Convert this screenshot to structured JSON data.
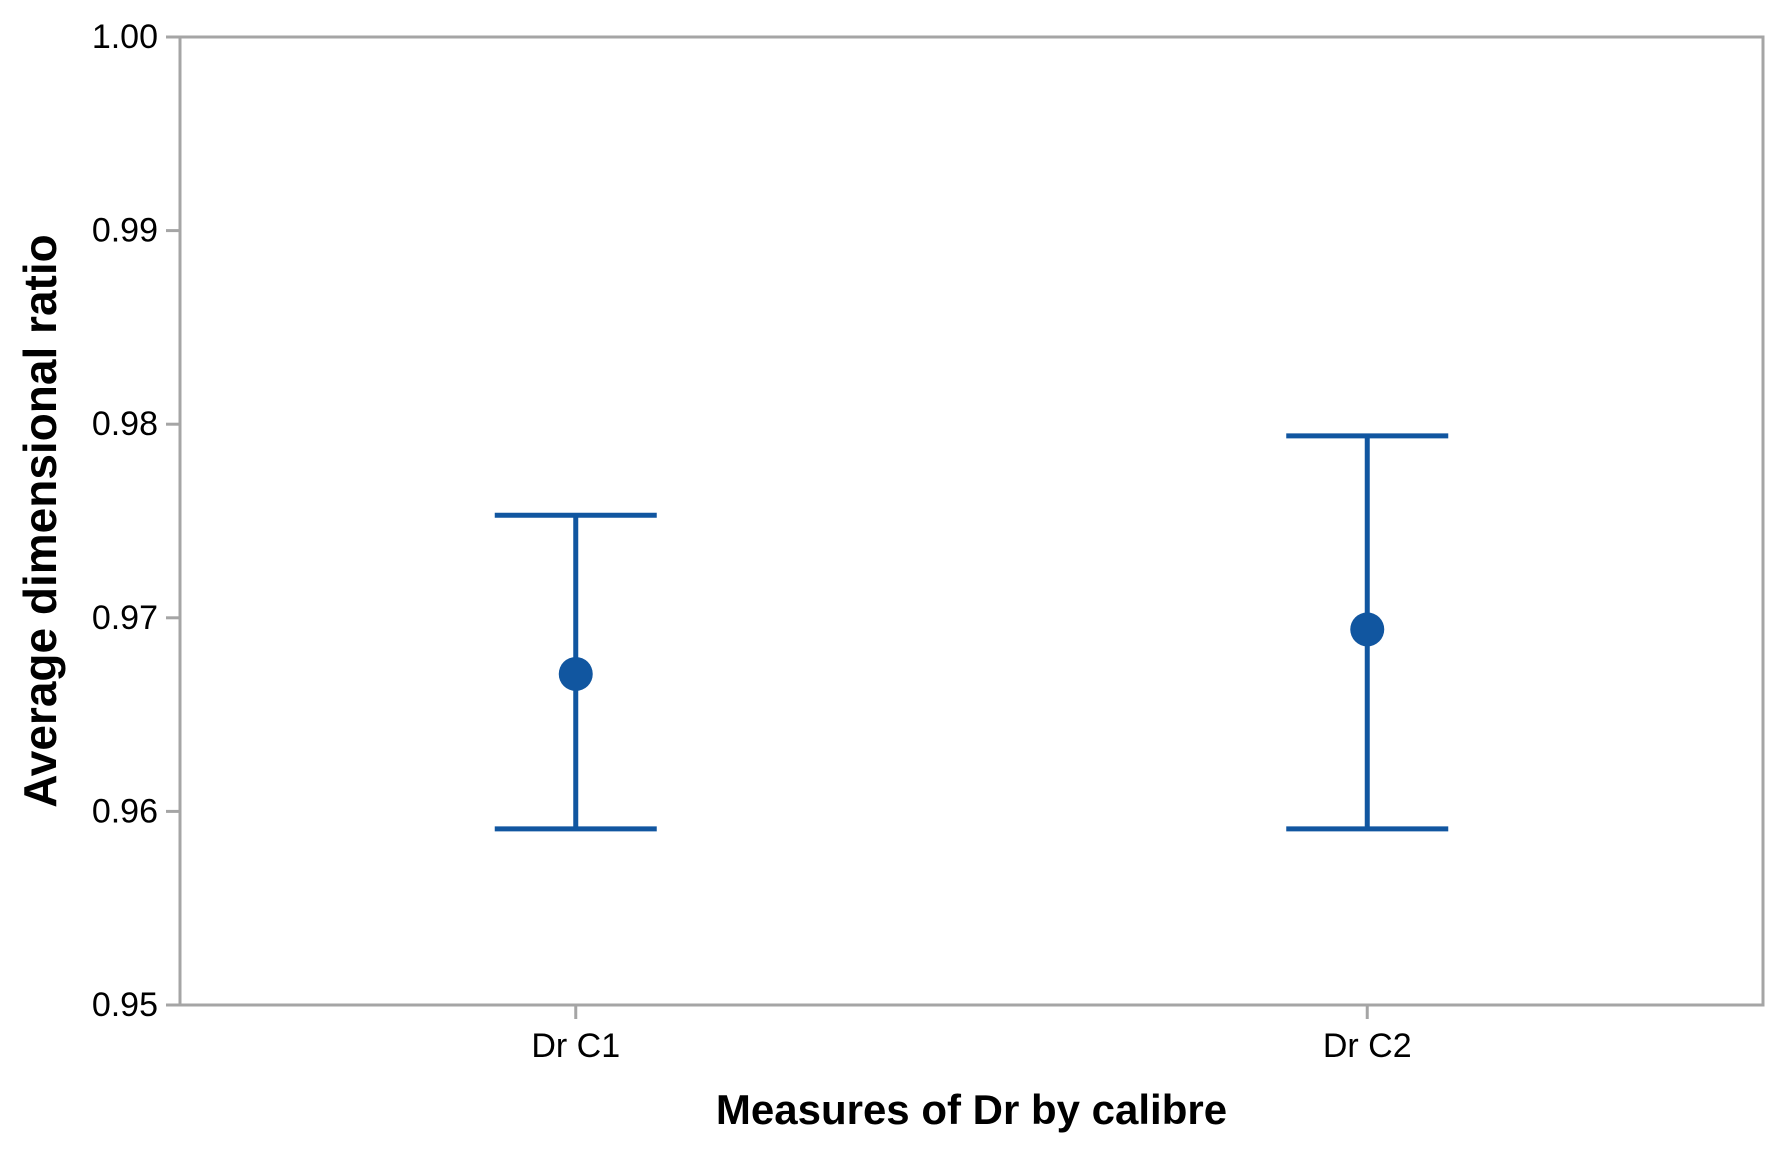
{
  "figure": {
    "background": "#ffffff",
    "frame_color": "#a5a5a5",
    "text_color": "#000000"
  },
  "chart_data": {
    "type": "interval",
    "subtype": "means with confidence-interval error bars",
    "title": "",
    "xlabel": "Measures of Dr by calibre",
    "ylabel": "Average dimensional ratio",
    "categories": [
      "Dr C1",
      "Dr C2"
    ],
    "series": [
      {
        "name": "mean",
        "values": [
          0.9671,
          0.9694
        ]
      },
      {
        "name": "ci_lower",
        "values": [
          0.9591,
          0.9591
        ]
      },
      {
        "name": "ci_upper",
        "values": [
          0.9753,
          0.9794
        ]
      }
    ],
    "ylim": [
      0.95,
      1.0
    ],
    "yticks": [
      1.0,
      0.99,
      0.98,
      0.97,
      0.96,
      0.95
    ],
    "ytick_decimals": 2,
    "grid": false,
    "legend": false,
    "marker": "filled-circle",
    "interval_color": "#1156a0",
    "axis_color": "#a5a5a5"
  }
}
